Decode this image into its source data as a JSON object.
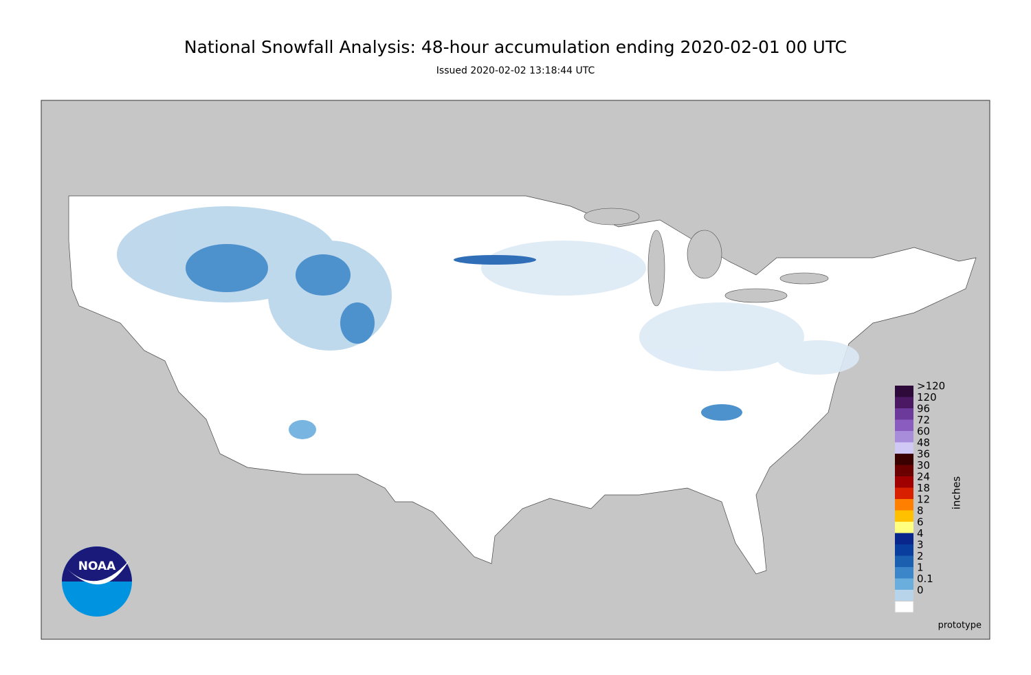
{
  "header": {
    "title": "National Snowfall Analysis: 48-hour accumulation ending 2020-02-01 00 UTC",
    "subtitle": "Issued 2020-02-02 13:18:44 UTC"
  },
  "legend": {
    "title": "inches",
    "levels": [
      {
        "label": ">120",
        "color": "#2e0a3b"
      },
      {
        "label": "120",
        "color": "#4b1864"
      },
      {
        "label": "96",
        "color": "#6b3a9a"
      },
      {
        "label": "72",
        "color": "#8a5cc0"
      },
      {
        "label": "60",
        "color": "#a88ddb"
      },
      {
        "label": "48",
        "color": "#d0c8f5"
      },
      {
        "label": "36",
        "color": "#3a0000"
      },
      {
        "label": "30",
        "color": "#6b0000"
      },
      {
        "label": "24",
        "color": "#a00000"
      },
      {
        "label": "18",
        "color": "#d82000"
      },
      {
        "label": "12",
        "color": "#ff8000"
      },
      {
        "label": "8",
        "color": "#ffc000"
      },
      {
        "label": "6",
        "color": "#ffff80"
      },
      {
        "label": "4",
        "color": "#08268c"
      },
      {
        "label": "3",
        "color": "#0a3e9e"
      },
      {
        "label": "2",
        "color": "#1a5fb0"
      },
      {
        "label": "1",
        "color": "#3a86c8"
      },
      {
        "label": "0.1",
        "color": "#6aaede"
      },
      {
        "label": "0",
        "color": "#b8d4ea"
      }
    ]
  },
  "footer": {
    "note": "prototype"
  },
  "logo": {
    "text": "NOAA"
  }
}
